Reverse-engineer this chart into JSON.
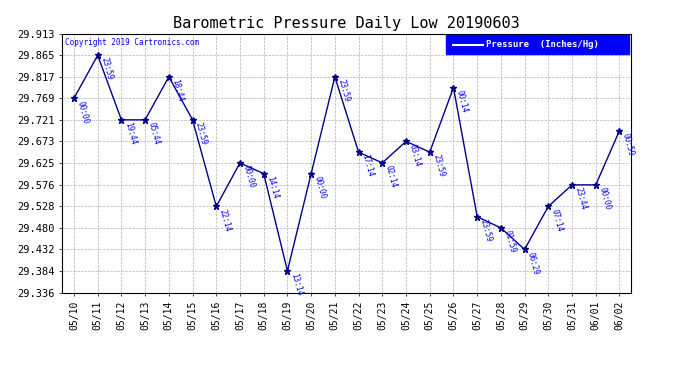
{
  "title": "Barometric Pressure Daily Low 20190603",
  "copyright": "Copyright 2019 Cartronics.com",
  "legend_label": "Pressure  (Inches/Hg)",
  "line_color": "#00008B",
  "bg_color": "#ffffff",
  "grid_color": "#b0b0b0",
  "dates": [
    "05/10",
    "05/11",
    "05/12",
    "05/13",
    "05/14",
    "05/15",
    "05/16",
    "05/17",
    "05/18",
    "05/19",
    "05/20",
    "05/21",
    "05/22",
    "05/23",
    "05/24",
    "05/25",
    "05/26",
    "05/27",
    "05/28",
    "05/29",
    "05/30",
    "05/31",
    "06/01",
    "06/02"
  ],
  "values": [
    29.769,
    29.865,
    29.721,
    29.721,
    29.817,
    29.721,
    29.528,
    29.625,
    29.601,
    29.384,
    29.601,
    29.817,
    29.649,
    29.625,
    29.673,
    29.649,
    29.793,
    29.505,
    29.48,
    29.432,
    29.528,
    29.576,
    29.576,
    29.697
  ],
  "annotations": [
    "00:00",
    "23:59",
    "19:44",
    "05:44",
    "18:44",
    "23:59",
    "22:14",
    "00:00",
    "14:14",
    "13:14",
    "00:00",
    "23:59",
    "17:14",
    "02:14",
    "03:14",
    "23:59",
    "00:14",
    "23:59",
    "01:59",
    "06:29",
    "07:14",
    "23:44",
    "00:00",
    "00:59"
  ],
  "ylim": [
    29.336,
    29.913
  ],
  "yticks": [
    29.336,
    29.384,
    29.432,
    29.48,
    29.528,
    29.576,
    29.625,
    29.673,
    29.721,
    29.769,
    29.817,
    29.865,
    29.913
  ]
}
